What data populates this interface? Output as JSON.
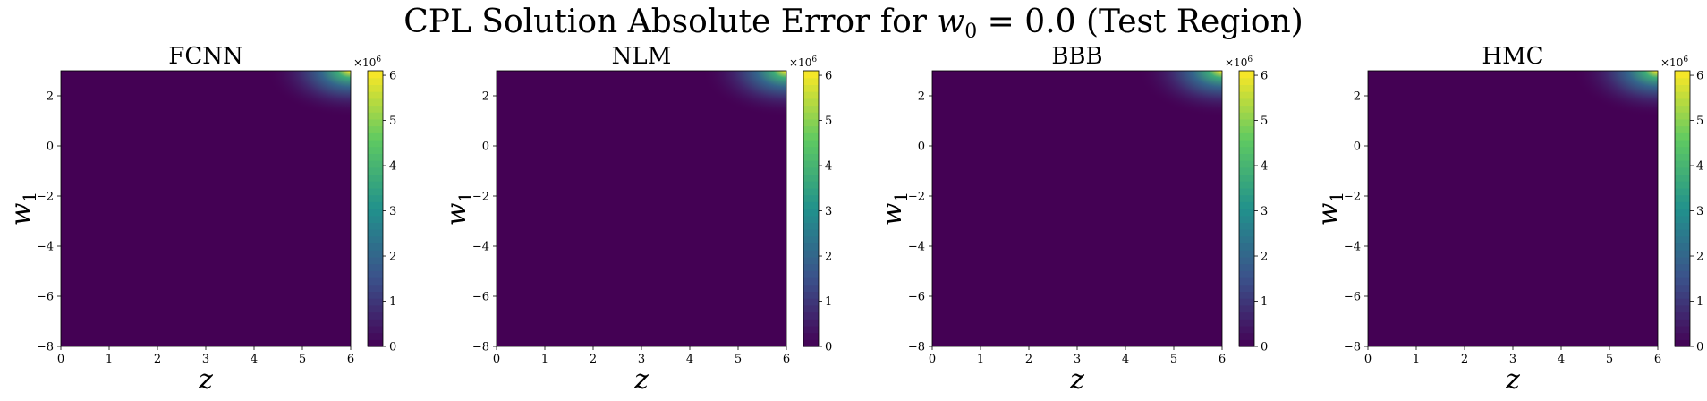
{
  "figure": {
    "title_prefix": "CPL Solution Absolute Error for ",
    "title_var": "w",
    "title_sub": "0",
    "title_suffix": " = 0.0 (Test Region)"
  },
  "chart_data": [
    {
      "type": "heatmap",
      "title": "FCNN",
      "xlabel": "z",
      "ylabel_base": "w",
      "ylabel_sub": "1",
      "xlim": [
        0,
        6
      ],
      "ylim": [
        -8,
        3
      ],
      "xticks": [
        "0",
        "1",
        "2",
        "3",
        "4",
        "5",
        "6"
      ],
      "xtick_values": [
        0,
        1,
        2,
        3,
        4,
        5,
        6
      ],
      "yticks": [
        "2",
        "0",
        "−2",
        "−4",
        "−6",
        "−8"
      ],
      "ytick_values": [
        2,
        0,
        -2,
        -4,
        -6,
        -8
      ],
      "colorbar": {
        "min": 0,
        "max": 6.1,
        "ticks": [
          "0",
          "1",
          "2",
          "3",
          "4",
          "5",
          "6"
        ],
        "tick_values": [
          0,
          1,
          2,
          3,
          4,
          5,
          6
        ],
        "multiplier_base": "×10",
        "multiplier_exp": "6",
        "colormap": "viridis"
      },
      "error_peak": {
        "at_z": 6,
        "at_w1": 3,
        "value": 6.1,
        "note": "error near 0 everywhere except top-right corner"
      }
    },
    {
      "type": "heatmap",
      "title": "NLM",
      "xlabel": "z",
      "ylabel_base": "w",
      "ylabel_sub": "1",
      "xlim": [
        0,
        6
      ],
      "ylim": [
        -8,
        3
      ],
      "xticks": [
        "0",
        "1",
        "2",
        "3",
        "4",
        "5",
        "6"
      ],
      "xtick_values": [
        0,
        1,
        2,
        3,
        4,
        5,
        6
      ],
      "yticks": [
        "2",
        "0",
        "−2",
        "−4",
        "−6",
        "−8"
      ],
      "ytick_values": [
        2,
        0,
        -2,
        -4,
        -6,
        -8
      ],
      "colorbar": {
        "min": 0,
        "max": 6.1,
        "ticks": [
          "0",
          "1",
          "2",
          "3",
          "4",
          "5",
          "6"
        ],
        "tick_values": [
          0,
          1,
          2,
          3,
          4,
          5,
          6
        ],
        "multiplier_base": "×10",
        "multiplier_exp": "6",
        "colormap": "viridis"
      },
      "error_peak": {
        "at_z": 6,
        "at_w1": 3,
        "value": 6.1,
        "note": "error near 0 everywhere except top-right corner"
      }
    },
    {
      "type": "heatmap",
      "title": "BBB",
      "xlabel": "z",
      "ylabel_base": "w",
      "ylabel_sub": "1",
      "xlim": [
        0,
        6
      ],
      "ylim": [
        -8,
        3
      ],
      "xticks": [
        "0",
        "1",
        "2",
        "3",
        "4",
        "5",
        "6"
      ],
      "xtick_values": [
        0,
        1,
        2,
        3,
        4,
        5,
        6
      ],
      "yticks": [
        "2",
        "0",
        "−2",
        "−4",
        "−6",
        "−8"
      ],
      "ytick_values": [
        2,
        0,
        -2,
        -4,
        -6,
        -8
      ],
      "colorbar": {
        "min": 0,
        "max": 6.1,
        "ticks": [
          "0",
          "1",
          "2",
          "3",
          "4",
          "5",
          "6"
        ],
        "tick_values": [
          0,
          1,
          2,
          3,
          4,
          5,
          6
        ],
        "multiplier_base": "×10",
        "multiplier_exp": "6",
        "colormap": "viridis"
      },
      "error_peak": {
        "at_z": 6,
        "at_w1": 3,
        "value": 6.1,
        "note": "error near 0 everywhere except top-right corner"
      }
    },
    {
      "type": "heatmap",
      "title": "HMC",
      "xlabel": "z",
      "ylabel_base": "w",
      "ylabel_sub": "1",
      "xlim": [
        0,
        6
      ],
      "ylim": [
        -8,
        3
      ],
      "xticks": [
        "0",
        "1",
        "2",
        "3",
        "4",
        "5",
        "6"
      ],
      "xtick_values": [
        0,
        1,
        2,
        3,
        4,
        5,
        6
      ],
      "yticks": [
        "2",
        "0",
        "−2",
        "−4",
        "−6",
        "−8"
      ],
      "ytick_values": [
        2,
        0,
        -2,
        -4,
        -6,
        -8
      ],
      "colorbar": {
        "min": 0,
        "max": 6.1,
        "ticks": [
          "0",
          "1",
          "2",
          "3",
          "4",
          "5",
          "6"
        ],
        "tick_values": [
          0,
          1,
          2,
          3,
          4,
          5,
          6
        ],
        "multiplier_base": "×10",
        "multiplier_exp": "6",
        "colormap": "viridis"
      },
      "error_peak": {
        "at_z": 6,
        "at_w1": 3,
        "value": 6.1,
        "note": "error near 0 everywhere except top-right corner"
      }
    }
  ]
}
